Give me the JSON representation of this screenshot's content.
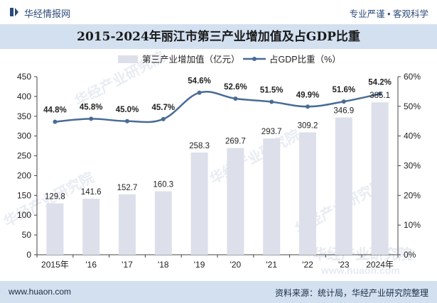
{
  "header": {
    "brand": "华经情报网",
    "tagline": "专业严谨 • 客观科学"
  },
  "title": "2015-2024年丽江市第三产业增加值及占GDP比重",
  "legend": {
    "bar_label": "第三产业增加值（亿元）",
    "line_label": "占GDP比重（%）"
  },
  "watermark": "华经产业研究院",
  "footer": {
    "url": "www.huaon.com",
    "source": "资料来源：统计局，华经产业研究院整理",
    "watermark_url": "www.huaon.com"
  },
  "colors": {
    "bar": "#dde0ea",
    "line": "#4a6b95",
    "band": "#d3e0f0",
    "brand": "#2c4a7a"
  },
  "chart_data": {
    "type": "bar",
    "categories": [
      "2015年",
      "'16",
      "'17",
      "'18",
      "'19",
      "'20",
      "'21",
      "'22",
      "'23",
      "2024年"
    ],
    "series": [
      {
        "name": "第三产业增加值（亿元）",
        "type": "bar",
        "axis": "left",
        "values": [
          129.8,
          141.6,
          152.7,
          160.3,
          258.3,
          269.7,
          293.7,
          309.2,
          346.9,
          385.1
        ],
        "labels": [
          "129.8",
          "141.6",
          "152.7",
          "160.3",
          "258.3",
          "269.7",
          "293.7",
          "309.2",
          "346.9",
          "385.1"
        ]
      },
      {
        "name": "占GDP比重（%）",
        "type": "line",
        "axis": "right",
        "values": [
          44.8,
          45.8,
          45.0,
          45.7,
          54.6,
          52.6,
          51.5,
          49.9,
          51.6,
          54.2
        ],
        "labels": [
          "44.8%",
          "45.8%",
          "45.0%",
          "45.7%",
          "54.6%",
          "52.6%",
          "51.5%",
          "49.9%",
          "51.6%",
          "54.2%"
        ]
      }
    ],
    "y_left": {
      "min": 0,
      "max": 450,
      "ticks": [
        "0",
        "50",
        "100",
        "150",
        "200",
        "250",
        "300",
        "350",
        "400",
        "450"
      ]
    },
    "y_right": {
      "min": 0,
      "max": 60,
      "ticks": [
        "0%",
        "10%",
        "20%",
        "30%",
        "40%",
        "50%",
        "60%"
      ]
    },
    "grid": false,
    "legend_position": "top"
  }
}
